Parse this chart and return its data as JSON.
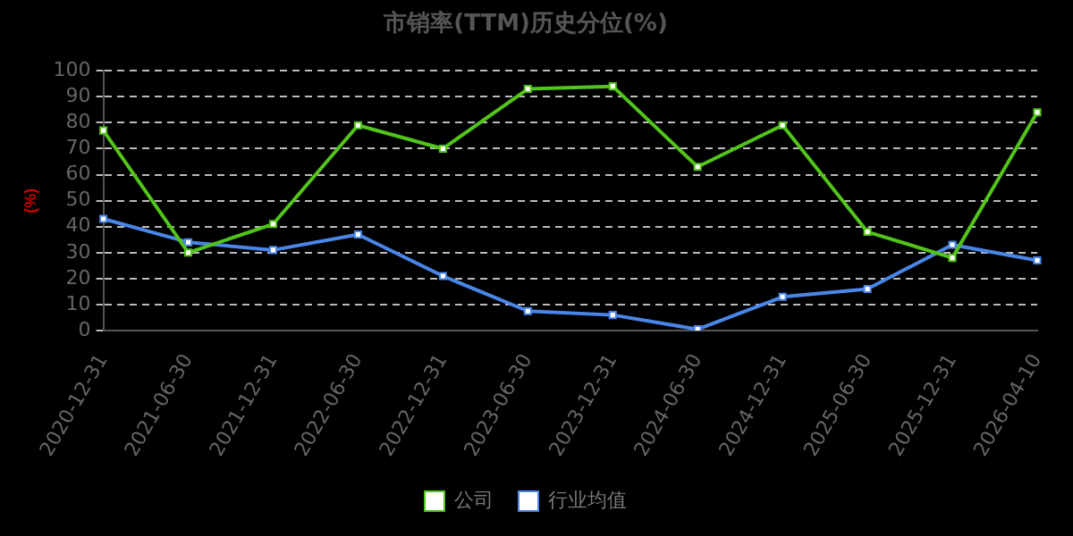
{
  "chart_data": {
    "type": "line",
    "title": "市销率(TTM)历史分位(%)",
    "ylabel": "(%)",
    "categories": [
      "2020-12-31",
      "2021-06-30",
      "2021-12-31",
      "2022-06-30",
      "2022-12-31",
      "2023-06-30",
      "2023-12-31",
      "2024-06-30",
      "2024-12-31",
      "2025-06-30",
      "2025-12-31",
      "2026-04-10"
    ],
    "series": [
      {
        "name": "公司",
        "color": "#52c41a",
        "values": [
          77,
          30,
          41,
          79,
          70,
          93,
          94,
          63,
          79,
          38,
          28,
          84
        ]
      },
      {
        "name": "行业均值",
        "color": "#4a86e8",
        "values": [
          43,
          34,
          31,
          37,
          21,
          7.5,
          6,
          0.5,
          13,
          16,
          33,
          27
        ]
      }
    ],
    "ylim": [
      0,
      100
    ],
    "yticks": [
      0,
      10,
      20,
      30,
      40,
      50,
      60,
      70,
      80,
      90,
      100
    ],
    "grid": "y",
    "legend": "bottom",
    "marker": "square",
    "line_style": "solid"
  }
}
